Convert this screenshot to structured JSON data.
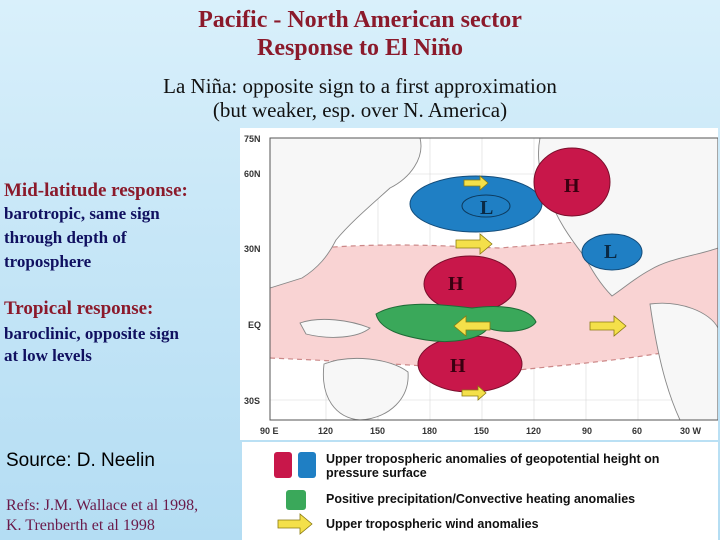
{
  "slide": {
    "title_line1": "Pacific - North American sector",
    "title_line2": "Response to El Niño",
    "subtitle_line1": "La Niña: opposite sign to a first approximation",
    "subtitle_line2": "(but weaker, esp. over N. America)"
  },
  "left_panel": {
    "midlat_heading": "Mid-latitude response:",
    "midlat_lines": [
      "barotropic, same sign",
      "through depth of",
      "troposphere"
    ],
    "tropical_heading": "Tropical response:",
    "tropical_lines": [
      "baroclinic, opposite sign",
      "at low levels"
    ],
    "source": "Source: D. Neelin",
    "refs_line1": "Refs: J.M. Wallace et al 1998,",
    "refs_line2": "K. Trenberth et al 1998"
  },
  "map": {
    "lat_labels": [
      "75N",
      "60N",
      "30N",
      "EQ",
      "30S"
    ],
    "lon_labels": [
      "90 E",
      "120",
      "150",
      "180",
      "150",
      "120",
      "90",
      "60",
      "30 W"
    ],
    "anomaly_labels": {
      "high_nw": "H",
      "low_north": "L",
      "low_east": "L",
      "high_trop_n": "H",
      "high_trop_s": "H"
    },
    "colors": {
      "high": "#c8174a",
      "low": "#1f7fc4",
      "precip": "#3aa85a",
      "wind": "#f4e04a",
      "band": "#f9d3d3"
    }
  },
  "legend": {
    "item1_line1": "Upper tropospheric anomalies of geopotential height on",
    "item1_line2": "pressure surface",
    "item2": "Positive precipitation/Convective heating anomalies",
    "item3": "Upper tropospheric wind anomalies"
  }
}
